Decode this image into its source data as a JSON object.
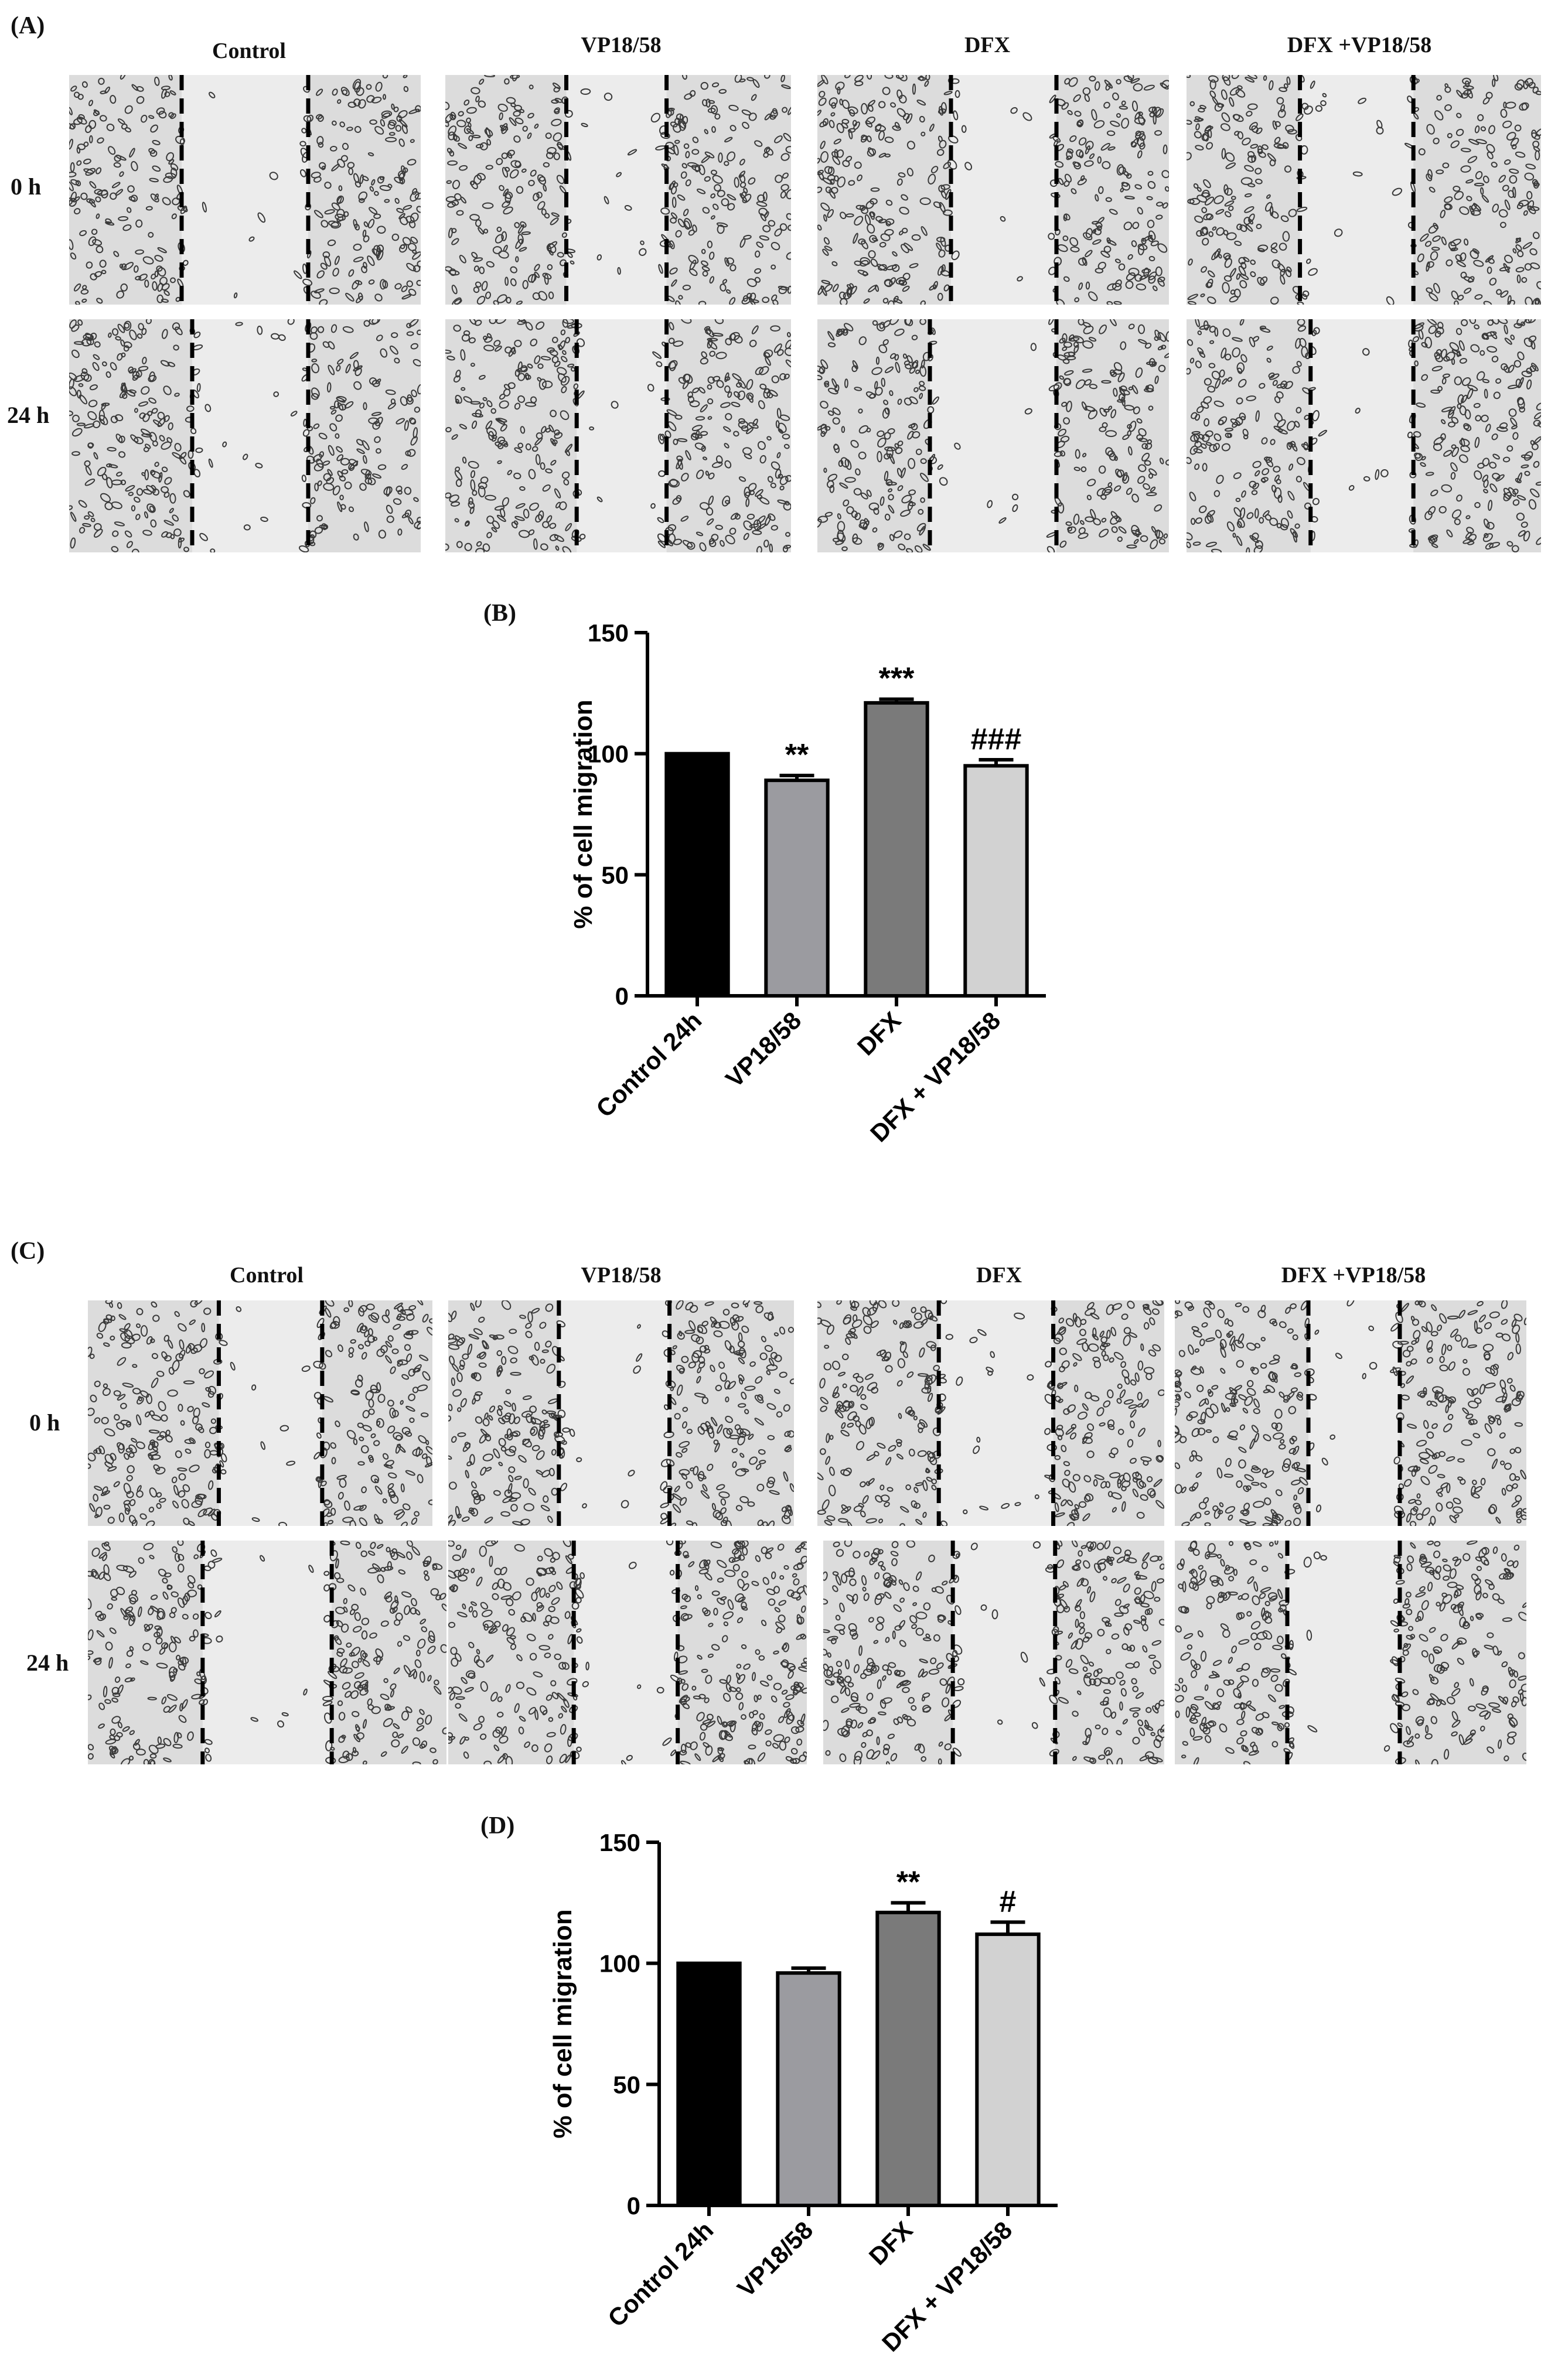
{
  "panels": {
    "A": {
      "label": "(A)",
      "columns": [
        "Control",
        "VP18/58",
        "DFX",
        "DFX +VP18/58"
      ],
      "rows": [
        "0 h",
        "24 h"
      ]
    },
    "C": {
      "label": "(C)",
      "columns": [
        "Control",
        "VP18/58",
        "DFX",
        "DFX +VP18/58"
      ],
      "rows": [
        "0 h",
        "24 h"
      ]
    }
  },
  "chart_data": [
    {
      "panel": "(B)",
      "type": "bar",
      "categories": [
        "Control 24h",
        "VP18/58",
        "DFX",
        "DFX + VP18/58"
      ],
      "values": [
        100,
        89,
        121,
        95
      ],
      "errors": [
        0,
        2,
        1.5,
        2.5
      ],
      "annotations": [
        "",
        "**",
        "***",
        "###"
      ],
      "ylabel": "% of cell migration",
      "ylim": [
        0,
        150
      ],
      "yticks": [
        0,
        50,
        100,
        150
      ],
      "colors": [
        "#000000",
        "#9b9ba0",
        "#7a7a7a",
        "#d2d2d2"
      ]
    },
    {
      "panel": "(D)",
      "type": "bar",
      "categories": [
        "Control 24h",
        "VP18/58",
        "DFX",
        "DFX + VP18/58"
      ],
      "values": [
        100,
        96,
        121,
        112
      ],
      "errors": [
        0,
        2,
        4,
        5
      ],
      "annotations": [
        "",
        "",
        "**",
        "#"
      ],
      "ylabel": "% of cell migration",
      "ylim": [
        0,
        150
      ],
      "yticks": [
        0,
        50,
        100,
        150
      ],
      "colors": [
        "#000000",
        "#9b9ba0",
        "#7a7a7a",
        "#d2d2d2"
      ]
    }
  ]
}
